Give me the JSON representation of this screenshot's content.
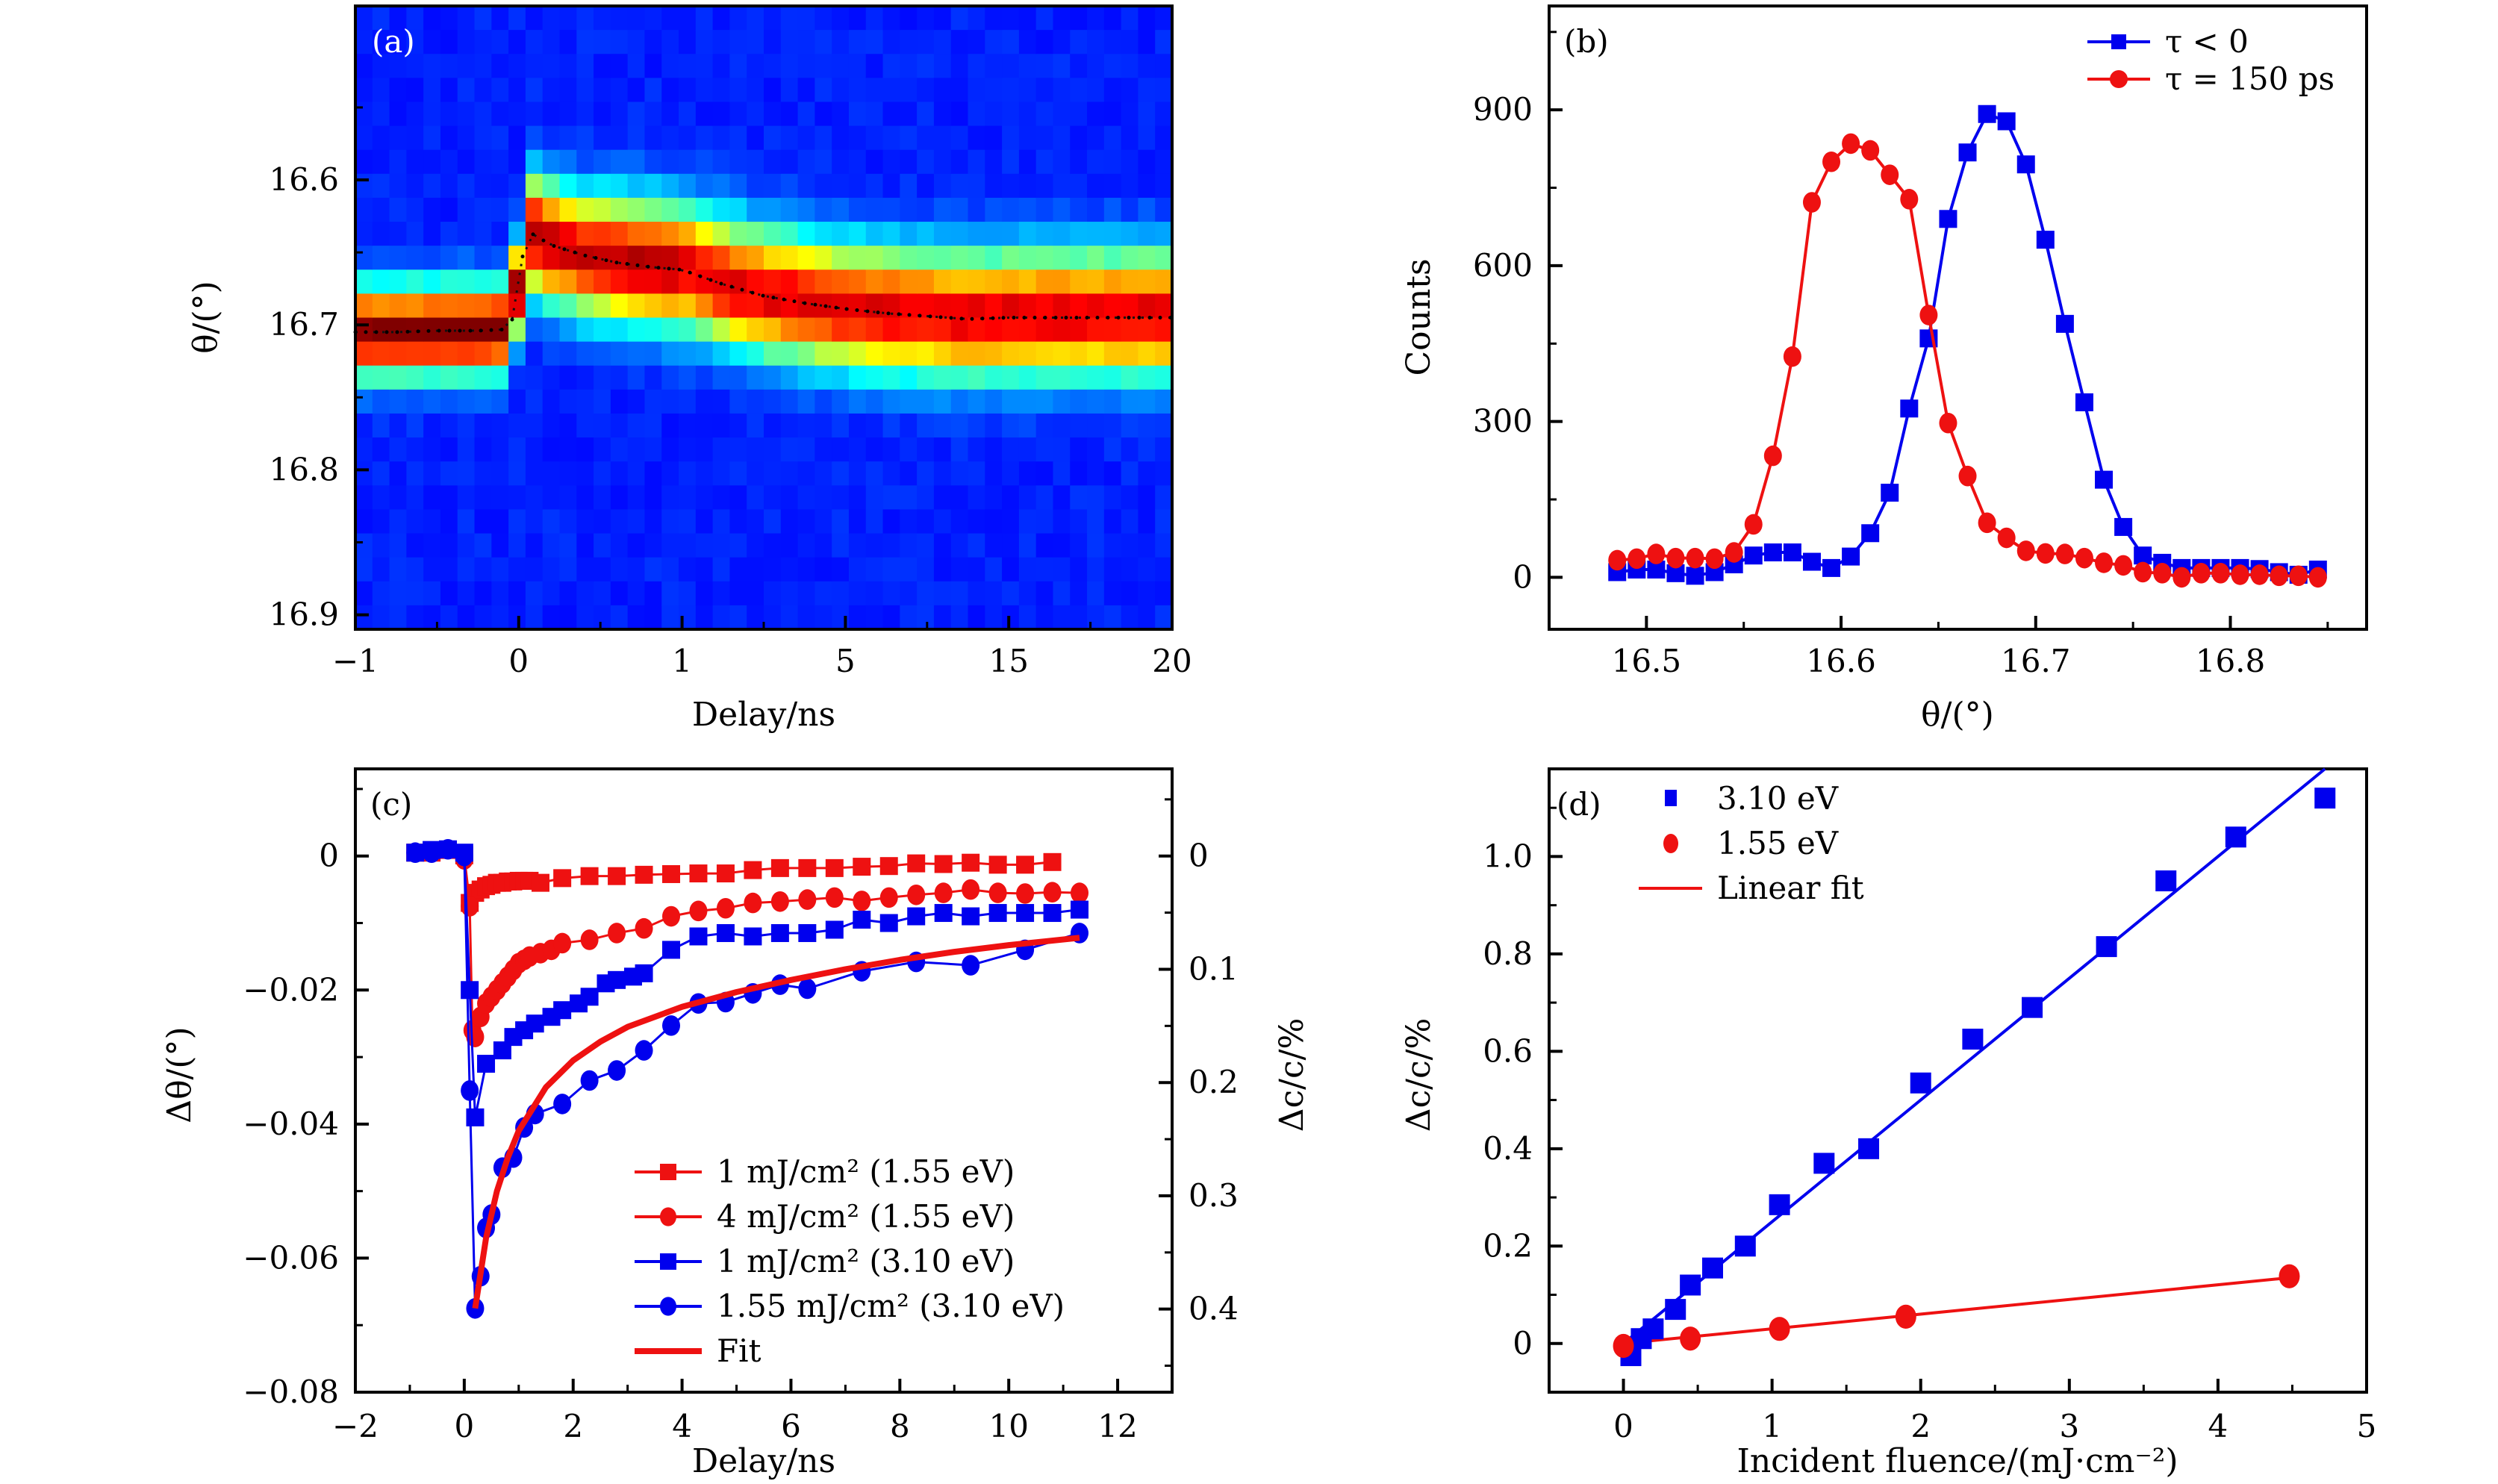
{
  "chart_data": [
    {
      "panel": "(a)",
      "type": "heatmap",
      "title": "",
      "xlabel": "Delay/ns",
      "ylabel": "θ/(°)",
      "x_ticks": [
        "−1",
        "0",
        "1",
        "5",
        "15",
        "20"
      ],
      "x_tick_values": [
        -1,
        0,
        1,
        5,
        15,
        20
      ],
      "x_scale": "piecewise, equally spaced ticks",
      "y_ticks": [
        "16.6",
        "16.7",
        "16.8",
        "16.9"
      ],
      "y_tick_values": [
        16.6,
        16.7,
        16.8,
        16.9
      ],
      "ylim": [
        16.91,
        16.48
      ],
      "colormap": "jet",
      "label_color": "#ffffff",
      "peak_center_trace": {
        "delay_ns": [
          -1,
          -0.75,
          -0.5,
          -0.25,
          -0.05,
          0.05,
          0.2,
          0.4,
          0.6,
          0.8,
          1,
          2,
          3,
          4,
          5,
          7.5,
          10,
          12.5,
          15,
          17.5,
          20
        ],
        "theta_deg": [
          16.705,
          16.705,
          16.704,
          16.704,
          16.703,
          16.635,
          16.645,
          16.652,
          16.657,
          16.66,
          16.662,
          16.672,
          16.68,
          16.685,
          16.689,
          16.692,
          16.694,
          16.696,
          16.695,
          16.695,
          16.695
        ]
      },
      "peak_width_deg": [
        0.045,
        0.06
      ]
    },
    {
      "panel": "(b)",
      "type": "line",
      "title": "",
      "xlabel": "θ/(°)",
      "ylabel": "Counts",
      "x_ticks": [
        "16.5",
        "16.6",
        "16.7",
        "16.8"
      ],
      "xlim": [
        16.45,
        16.87
      ],
      "y_ticks": [
        "0",
        "300",
        "600",
        "900"
      ],
      "ylim": [
        -100,
        1100
      ],
      "legend_position": "top-right",
      "x": [
        16.485,
        16.495,
        16.505,
        16.515,
        16.525,
        16.535,
        16.545,
        16.555,
        16.565,
        16.575,
        16.585,
        16.595,
        16.605,
        16.615,
        16.625,
        16.635,
        16.645,
        16.655,
        16.665,
        16.675,
        16.685,
        16.695,
        16.705,
        16.715,
        16.725,
        16.735,
        16.745,
        16.755,
        16.765,
        16.775,
        16.785,
        16.795,
        16.805,
        16.815,
        16.825,
        16.835,
        16.845
      ],
      "series": [
        {
          "name": "τ < 0",
          "color": "#0000ee",
          "marker": "square",
          "values": [
            10,
            15,
            15,
            8,
            3,
            10,
            25,
            42,
            48,
            48,
            30,
            18,
            40,
            85,
            163,
            325,
            460,
            690,
            818,
            892,
            878,
            795,
            650,
            488,
            337,
            188,
            97,
            42,
            28,
            18,
            18,
            18,
            18,
            16,
            10,
            5,
            15
          ]
        },
        {
          "name": "τ = 150 ps",
          "color": "#ee1111",
          "marker": "circle",
          "values": [
            33,
            36,
            45,
            37,
            37,
            36,
            48,
            102,
            234,
            425,
            722,
            800,
            835,
            822,
            775,
            728,
            505,
            297,
            195,
            105,
            76,
            51,
            46,
            45,
            37,
            28,
            23,
            10,
            8,
            0,
            8,
            8,
            5,
            5,
            3,
            3,
            0
          ]
        }
      ]
    },
    {
      "panel": "(c)",
      "type": "scatter",
      "title": "",
      "xlabel": "Delay/ns",
      "ylabel": "Δθ/(°)",
      "y2label": "Δc/c/%",
      "x_ticks": [
        "−2",
        "0",
        "2",
        "4",
        "6",
        "8",
        "10",
        "12"
      ],
      "xlim": [
        -2,
        13
      ],
      "y_ticks": [
        "0",
        "−0.02",
        "−0.04",
        "−0.06",
        "−0.08"
      ],
      "ylim": [
        -0.08,
        0.013
      ],
      "y2_ticks": [
        "0",
        "0.1",
        "0.2",
        "0.3",
        "0.4"
      ],
      "y2_tick_positions_in_y_units": [
        0,
        -0.0169,
        -0.0338,
        -0.0507,
        -0.0676
      ],
      "legend_position": "bottom-right",
      "series": [
        {
          "name": "1 mJ/cm² (1.55 eV)",
          "color": "#ee1111",
          "marker": "square",
          "x": [
            -0.9,
            -0.6,
            -0.3,
            0,
            0.1,
            0.2,
            0.3,
            0.4,
            0.5,
            0.6,
            0.7,
            0.8,
            0.9,
            1.0,
            1.1,
            1.2,
            1.4,
            1.8,
            2.3,
            2.8,
            3.3,
            3.8,
            4.3,
            4.8,
            5.3,
            5.8,
            6.3,
            6.8,
            7.3,
            7.8,
            8.3,
            8.8,
            9.3,
            9.8,
            10.3,
            10.8
          ],
          "y": [
            0.0005,
            0.0005,
            0.0009,
            0.0001,
            -0.007,
            -0.0055,
            -0.005,
            -0.0045,
            -0.0043,
            -0.004,
            -0.004,
            -0.0038,
            -0.0038,
            -0.0037,
            -0.0037,
            -0.0037,
            -0.004,
            -0.0033,
            -0.003,
            -0.003,
            -0.0028,
            -0.0027,
            -0.0026,
            -0.0026,
            -0.0021,
            -0.0018,
            -0.0018,
            -0.0018,
            -0.0016,
            -0.0015,
            -0.0011,
            -0.0012,
            -0.001,
            -0.0013,
            -0.0013,
            -0.0009
          ]
        },
        {
          "name": "4 mJ/cm² (1.55 eV)",
          "color": "#ee1111",
          "marker": "circle",
          "x": [
            0,
            0.1,
            0.15,
            0.2,
            0.3,
            0.4,
            0.5,
            0.6,
            0.7,
            0.8,
            0.9,
            1.0,
            1.1,
            1.2,
            1.4,
            1.6,
            1.8,
            2.3,
            2.8,
            3.3,
            3.8,
            4.3,
            4.8,
            5.3,
            5.8,
            6.3,
            6.8,
            7.3,
            7.8,
            8.3,
            8.8,
            9.3,
            9.8,
            10.3,
            10.8,
            11.3
          ],
          "y": [
            -0.0005,
            -0.0075,
            -0.026,
            -0.027,
            -0.024,
            -0.022,
            -0.021,
            -0.02,
            -0.019,
            -0.018,
            -0.017,
            -0.016,
            -0.0155,
            -0.015,
            -0.0145,
            -0.014,
            -0.013,
            -0.0125,
            -0.0115,
            -0.0108,
            -0.009,
            -0.0082,
            -0.0078,
            -0.007,
            -0.0068,
            -0.0065,
            -0.0062,
            -0.0067,
            -0.0062,
            -0.0058,
            -0.0055,
            -0.005,
            -0.0055,
            -0.0056,
            -0.0054,
            -0.0055
          ]
        },
        {
          "name": "1 mJ/cm² (3.10 eV)",
          "color": "#0000ee",
          "marker": "square",
          "x": [
            -0.9,
            -0.6,
            -0.3,
            0,
            0.1,
            0.2,
            0.4,
            0.7,
            0.9,
            1.1,
            1.3,
            1.6,
            1.8,
            2.1,
            2.3,
            2.6,
            2.8,
            3.1,
            3.3,
            3.8,
            4.3,
            4.8,
            5.3,
            5.8,
            6.3,
            6.8,
            7.3,
            7.8,
            8.3,
            8.8,
            9.3,
            9.8,
            10.3,
            10.8,
            11.3
          ],
          "y": [
            0.0005,
            0.0009,
            0.001,
            0.0005,
            -0.02,
            -0.039,
            -0.031,
            -0.029,
            -0.027,
            -0.026,
            -0.025,
            -0.024,
            -0.023,
            -0.022,
            -0.021,
            -0.019,
            -0.0185,
            -0.018,
            -0.0175,
            -0.014,
            -0.012,
            -0.0115,
            -0.012,
            -0.0115,
            -0.0115,
            -0.011,
            -0.0095,
            -0.01,
            -0.009,
            -0.0085,
            -0.009,
            -0.0085,
            -0.0085,
            -0.0085,
            -0.008
          ]
        },
        {
          "name": "1.55 mJ/cm² (3.10 eV)",
          "color": "#0000ee",
          "marker": "circle",
          "x": [
            -0.9,
            -0.6,
            -0.3,
            0,
            0.1,
            0.2,
            0.3,
            0.4,
            0.5,
            0.7,
            0.9,
            1.1,
            1.3,
            1.8,
            2.3,
            2.8,
            3.3,
            3.8,
            4.3,
            4.8,
            5.3,
            5.8,
            6.3,
            7.3,
            8.3,
            9.3,
            10.3,
            11.3
          ],
          "y": [
            0.0005,
            0.0005,
            0.001,
            0,
            -0.035,
            -0.0675,
            -0.0627,
            -0.0555,
            -0.0535,
            -0.0465,
            -0.045,
            -0.0405,
            -0.0385,
            -0.037,
            -0.0335,
            -0.032,
            -0.029,
            -0.0253,
            -0.022,
            -0.0218,
            -0.0205,
            -0.0192,
            -0.0198,
            -0.0172,
            -0.0158,
            -0.0163,
            -0.014,
            -0.0115
          ]
        },
        {
          "name": "Fit",
          "color": "#ee1111",
          "marker": "none",
          "linewidth": "thick",
          "x": [
            0.2,
            0.4,
            0.6,
            0.8,
            1.0,
            1.5,
            2.0,
            2.5,
            3.0,
            4.0,
            5.0,
            6.0,
            7.0,
            8.0,
            9.0,
            10.0,
            11.3
          ],
          "y": [
            -0.0675,
            -0.057,
            -0.05,
            -0.045,
            -0.041,
            -0.0345,
            -0.0305,
            -0.0277,
            -0.0255,
            -0.0225,
            -0.0203,
            -0.0185,
            -0.0169,
            -0.0155,
            -0.0143,
            -0.0133,
            -0.0122
          ]
        }
      ]
    },
    {
      "panel": "(d)",
      "type": "scatter",
      "title": "",
      "xlabel": "Incident fluence/(mJ·cm⁻²)",
      "ylabel": "Δc/c/%",
      "x_ticks": [
        "0",
        "1",
        "2",
        "3",
        "4",
        "5"
      ],
      "xlim": [
        -0.5,
        5
      ],
      "y_ticks": [
        "0",
        "0.2",
        "0.4",
        "0.6",
        "0.8",
        "1.0"
      ],
      "ylim": [
        -0.1,
        1.18
      ],
      "legend_position": "top-left",
      "series": [
        {
          "name": "3.10 eV",
          "color": "#0000ee",
          "marker": "square",
          "x": [
            0.05,
            0.12,
            0.2,
            0.35,
            0.45,
            0.6,
            0.82,
            1.05,
            1.35,
            1.65,
            2.0,
            2.35,
            2.75,
            3.25,
            3.65,
            4.12,
            4.72
          ],
          "y": [
            -0.025,
            0.01,
            0.03,
            0.07,
            0.12,
            0.155,
            0.2,
            0.285,
            0.37,
            0.4,
            0.535,
            0.625,
            0.69,
            0.815,
            0.95,
            1.04,
            1.12
          ]
        },
        {
          "name": "1.55 eV",
          "color": "#ee1111",
          "marker": "circle",
          "x": [
            0,
            0.45,
            1.05,
            1.9,
            4.48
          ],
          "y": [
            -0.005,
            0.01,
            0.03,
            0.055,
            0.138
          ]
        },
        {
          "name": "Linear fit",
          "color": "#ee1111",
          "marker": "none",
          "fits": [
            {
              "color": "#0000ee",
              "x": [
                0,
                4.72
              ],
              "y": [
                0,
                1.18
              ]
            },
            {
              "color": "#ee1111",
              "x": [
                0,
                4.48
              ],
              "y": [
                0,
                0.135
              ]
            }
          ]
        }
      ]
    }
  ],
  "legend_c_extra_label": "Δc/c/%"
}
